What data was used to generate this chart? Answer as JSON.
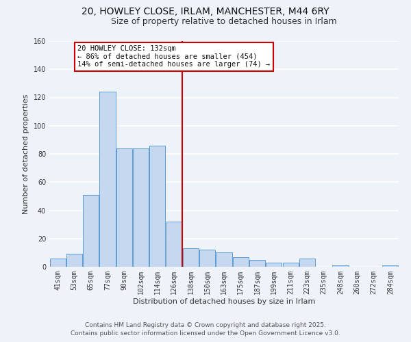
{
  "title": "20, HOWLEY CLOSE, IRLAM, MANCHESTER, M44 6RY",
  "subtitle": "Size of property relative to detached houses in Irlam",
  "xlabel": "Distribution of detached houses by size in Irlam",
  "ylabel": "Number of detached properties",
  "bar_labels": [
    "41sqm",
    "53sqm",
    "65sqm",
    "77sqm",
    "90sqm",
    "102sqm",
    "114sqm",
    "126sqm",
    "138sqm",
    "150sqm",
    "163sqm",
    "175sqm",
    "187sqm",
    "199sqm",
    "211sqm",
    "223sqm",
    "235sqm",
    "248sqm",
    "260sqm",
    "272sqm",
    "284sqm"
  ],
  "bar_values": [
    6,
    9,
    51,
    124,
    84,
    84,
    86,
    32,
    13,
    12,
    10,
    7,
    5,
    3,
    3,
    6,
    0,
    1,
    0,
    0,
    1
  ],
  "bar_color": "#c5d8f0",
  "bar_edge_color": "#5b9bd5",
  "ylim": [
    0,
    160
  ],
  "yticks": [
    0,
    20,
    40,
    60,
    80,
    100,
    120,
    140,
    160
  ],
  "vline_x": 7.5,
  "vline_color": "#cc0000",
  "annotation_title": "20 HOWLEY CLOSE: 132sqm",
  "annotation_line1": "← 86% of detached houses are smaller (454)",
  "annotation_line2": "14% of semi-detached houses are larger (74) →",
  "annotation_box_color": "#ffffff",
  "annotation_border_color": "#cc0000",
  "footer1": "Contains HM Land Registry data © Crown copyright and database right 2025.",
  "footer2": "Contains public sector information licensed under the Open Government Licence v3.0.",
  "background_color": "#eef2f9",
  "grid_color": "#ffffff",
  "title_fontsize": 10,
  "subtitle_fontsize": 9,
  "axis_label_fontsize": 8,
  "tick_fontsize": 7,
  "footer_fontsize": 6.5,
  "ann_fontsize": 7.5
}
